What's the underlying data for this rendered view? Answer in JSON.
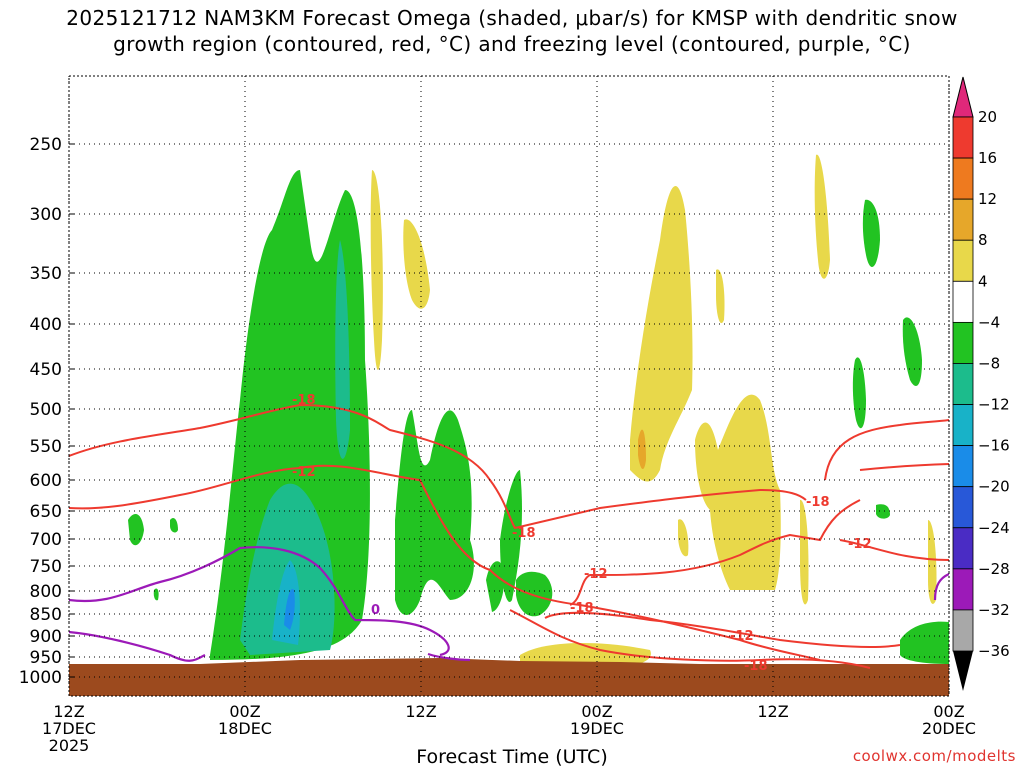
{
  "title": {
    "line1": "2025121712 NAM3KM Forecast Omega (shaded, μbar/s) for KMSP with dendritic snow",
    "line2": "growth region (contoured, red, °C) and freezing level (contoured, purple, °C)"
  },
  "x_axis_title": "Forecast Time (UTC)",
  "source": "coolwx.com/modelts",
  "chart_data": {
    "type": "heatmap",
    "y_axis": {
      "label": "",
      "scale": "pressure (hPa)",
      "ticks": [
        250,
        300,
        350,
        400,
        450,
        500,
        550,
        600,
        650,
        700,
        750,
        800,
        850,
        900,
        950,
        1000
      ]
    },
    "x_axis": {
      "ticks": [
        {
          "hour": 0,
          "lines": [
            "12Z",
            "17DEC",
            "2025"
          ]
        },
        {
          "hour": 12,
          "lines": [
            "00Z",
            "18DEC"
          ]
        },
        {
          "hour": 24,
          "lines": [
            "12Z"
          ]
        },
        {
          "hour": 36,
          "lines": [
            "00Z",
            "19DEC"
          ]
        },
        {
          "hour": 48,
          "lines": [
            "12Z"
          ]
        },
        {
          "hour": 60,
          "lines": [
            "00Z",
            "20DEC"
          ]
        }
      ]
    },
    "colorbar": {
      "labels": [
        20,
        16,
        12,
        8,
        4,
        -4,
        -8,
        -12,
        -16,
        -20,
        -24,
        -28,
        -32,
        -36
      ],
      "colors": [
        "#ee4466",
        "#ee3a2f",
        "#ee7a1f",
        "#e6a72a",
        "#e8d84a",
        "#ffffff",
        "#22c322",
        "#1cbc8c",
        "#18b2c8",
        "#1a8ce8",
        "#2858d8",
        "#4a2cc4",
        "#9c1ab8",
        "#a8a8a8",
        "#000000"
      ]
    },
    "contour_labels": {
      "dendritic_red": [
        "-18",
        "-12",
        "-18",
        "-12",
        "-18",
        "-12",
        "-18",
        "-12",
        "-18"
      ],
      "freezing_purple": [
        "0"
      ]
    },
    "ground_color": "#9c4a1e",
    "notes": "Omega shaded: green (negative, rising) regions near 00Z-12Z 18DEC and 00Z 20DEC; yellow (positive, sinking) regions around 00Z-12Z 19DEC."
  }
}
